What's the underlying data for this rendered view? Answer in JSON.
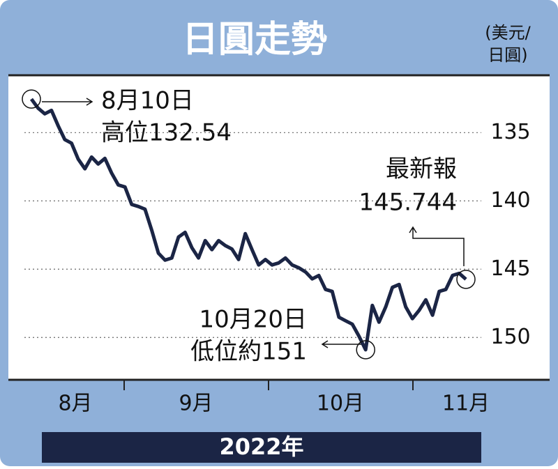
{
  "chart_data": {
    "type": "line",
    "title": "日圓走勢",
    "unit_label": [
      "(美元/",
      "日圓)"
    ],
    "period_label": "2022年",
    "month_labels": [
      "8月",
      "9月",
      "10月",
      "11月"
    ],
    "ylim": [
      130.8,
      153.1
    ],
    "inverted": true,
    "yticks": [
      135,
      140,
      145,
      150
    ],
    "grid": true,
    "color": "#1b2545",
    "annotations": {
      "high": [
        "8月10日",
        "高位132.54"
      ],
      "latest": [
        "最新報",
        "145.744"
      ],
      "low": [
        "10月20日",
        "低位約151"
      ]
    },
    "values": [
      132.54,
      133.21,
      133.62,
      133.37,
      134.49,
      135.51,
      135.77,
      136.94,
      137.65,
      136.79,
      137.3,
      136.89,
      137.96,
      138.83,
      138.98,
      140.26,
      140.41,
      140.61,
      142.14,
      143.83,
      144.34,
      144.18,
      142.65,
      142.3,
      143.42,
      144.18,
      142.91,
      143.57,
      142.91,
      143.27,
      143.52,
      144.29,
      142.4,
      143.57,
      144.69,
      144.29,
      144.69,
      144.54,
      144.18,
      144.69,
      144.9,
      145.2,
      145.71,
      145.46,
      146.48,
      146.63,
      148.52,
      148.78,
      149.03,
      149.9,
      150.9,
      147.65,
      148.88,
      147.76,
      146.33,
      146.12,
      147.76,
      148.62,
      148.01,
      147.24,
      148.37,
      146.63,
      146.48,
      145.46,
      145.31,
      145.744
    ]
  }
}
